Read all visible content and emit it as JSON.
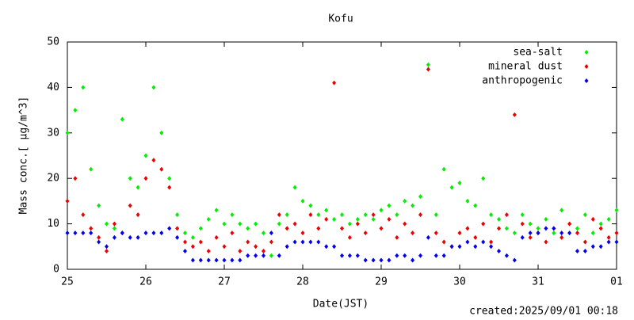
{
  "chart_data": {
    "type": "scatter",
    "title": "Kofu",
    "xlabel": "Date(JST)",
    "ylabel": "Mass conc.[ μg/m^3]",
    "footnote": "created:2025/09/01 00:18",
    "xlim": [
      25,
      32
    ],
    "xticks": [
      25,
      26,
      27,
      28,
      29,
      30,
      31,
      {
        "value": 32,
        "label": "01"
      }
    ],
    "ylim": [
      0,
      50
    ],
    "yticks": [
      0,
      10,
      20,
      30,
      40,
      50
    ],
    "legend": "upper right",
    "x": [
      25.0,
      25.1,
      25.2,
      25.3,
      25.4,
      25.5,
      25.6,
      25.7,
      25.8,
      25.9,
      26.0,
      26.1,
      26.2,
      26.3,
      26.4,
      26.5,
      26.6,
      26.7,
      26.8,
      26.9,
      27.0,
      27.1,
      27.2,
      27.3,
      27.4,
      27.5,
      27.6,
      27.7,
      27.8,
      27.9,
      28.0,
      28.1,
      28.2,
      28.3,
      28.4,
      28.5,
      28.6,
      28.7,
      28.8,
      28.9,
      29.0,
      29.1,
      29.2,
      29.3,
      29.4,
      29.5,
      29.6,
      29.7,
      29.8,
      29.9,
      30.0,
      30.1,
      30.2,
      30.3,
      30.4,
      30.5,
      30.6,
      30.7,
      30.8,
      30.9,
      31.0,
      31.1,
      31.2,
      31.3,
      31.4,
      31.5,
      31.6,
      31.7,
      31.8,
      31.9,
      32.0
    ],
    "series": [
      {
        "name": "sea-salt",
        "color": "#00ee00",
        "values": [
          30,
          35,
          40,
          22,
          14,
          10,
          9,
          33,
          20,
          18,
          25,
          40,
          30,
          20,
          12,
          8,
          7,
          9,
          11,
          13,
          10,
          12,
          10,
          9,
          10,
          8,
          3,
          10,
          12,
          18,
          15,
          14,
          12,
          13,
          11,
          12,
          10,
          11,
          12,
          11,
          13,
          14,
          12,
          15,
          14,
          16,
          45,
          12,
          22,
          18,
          19,
          15,
          14,
          20,
          12,
          11,
          9,
          8,
          12,
          10,
          9,
          11,
          8,
          13,
          10,
          9,
          12,
          8,
          10,
          11,
          13
        ]
      },
      {
        "name": "mineral dust",
        "color": "#ee0000",
        "values": [
          15,
          20,
          12,
          9,
          7,
          4,
          10,
          8,
          14,
          12,
          20,
          24,
          22,
          18,
          9,
          6,
          5,
          6,
          4,
          7,
          5,
          8,
          4,
          6,
          5,
          4,
          6,
          12,
          9,
          10,
          8,
          12,
          9,
          11,
          41,
          9,
          7,
          10,
          8,
          12,
          9,
          11,
          7,
          10,
          8,
          12,
          44,
          8,
          6,
          5,
          8,
          9,
          7,
          10,
          6,
          9,
          12,
          34,
          10,
          7,
          8,
          6,
          9,
          7,
          10,
          8,
          6,
          11,
          9,
          7,
          8
        ]
      },
      {
        "name": "anthropogenic",
        "color": "#0000ee",
        "values": [
          8,
          8,
          8,
          8,
          6,
          5,
          7,
          8,
          7,
          7,
          8,
          8,
          8,
          9,
          7,
          4,
          2,
          2,
          2,
          2,
          2,
          2,
          2,
          3,
          3,
          3,
          8,
          3,
          5,
          6,
          6,
          6,
          6,
          5,
          5,
          3,
          3,
          3,
          2,
          2,
          2,
          2,
          3,
          3,
          2,
          3,
          7,
          3,
          3,
          5,
          5,
          6,
          5,
          6,
          5,
          4,
          3,
          2,
          7,
          8,
          8,
          9,
          9,
          8,
          8,
          4,
          4,
          5,
          5,
          6,
          6
        ]
      }
    ]
  }
}
